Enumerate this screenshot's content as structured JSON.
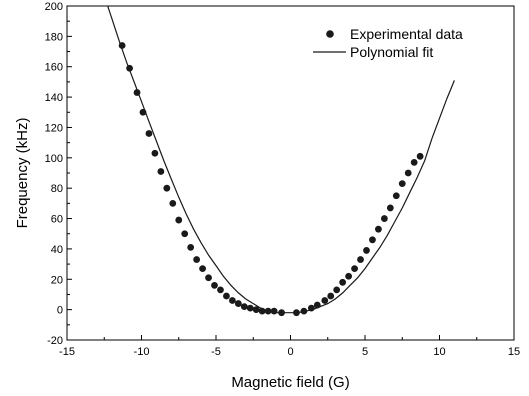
{
  "chart_data": {
    "type": "scatter",
    "title": "",
    "xlabel": "Magnetic field (G)",
    "ylabel": "Frequency (kHz)",
    "xlim": [
      -15,
      15
    ],
    "ylim": [
      -20,
      200
    ],
    "x_ticks": [
      -15,
      -10,
      -5,
      0,
      5,
      10,
      15
    ],
    "y_ticks": [
      -20,
      0,
      20,
      40,
      60,
      80,
      100,
      120,
      140,
      160,
      180,
      200
    ],
    "grid": false,
    "legend_position": "top-right",
    "colors": {
      "markers": "#1a1a1a",
      "line": "#1a1a1a"
    },
    "series": [
      {
        "name": "Experimental data",
        "kind": "markers",
        "x": [
          -11.3,
          -10.8,
          -10.3,
          -9.9,
          -9.5,
          -9.1,
          -8.7,
          -8.3,
          -7.9,
          -7.5,
          -7.1,
          -6.7,
          -6.3,
          -5.9,
          -5.5,
          -5.1,
          -4.7,
          -4.3,
          -3.9,
          -3.5,
          -3.1,
          -2.7,
          -2.3,
          -1.9,
          -1.5,
          -1.1,
          -0.6,
          0.4,
          0.9,
          1.4,
          1.8,
          2.3,
          2.7,
          3.1,
          3.5,
          3.9,
          4.3,
          4.7,
          5.1,
          5.5,
          5.9,
          6.3,
          6.7,
          7.1,
          7.5,
          7.9,
          8.3,
          8.7
        ],
        "y": [
          174,
          159,
          143,
          130,
          116,
          103,
          91,
          80,
          70,
          59,
          50,
          41,
          33,
          27,
          21,
          16,
          13,
          9,
          6,
          4,
          2,
          1,
          0,
          -1,
          -1,
          -1,
          -2,
          -2,
          -1,
          1,
          3,
          6,
          9,
          13,
          18,
          22,
          27,
          33,
          39,
          46,
          53,
          60,
          67,
          75,
          83,
          90,
          97,
          101
        ]
      },
      {
        "name": "Polynomial fit",
        "kind": "line",
        "x": [
          -12.3,
          -12,
          -11.5,
          -11,
          -10.5,
          -10,
          -9.5,
          -9,
          -8.5,
          -8,
          -7.5,
          -7,
          -6.5,
          -6,
          -5.5,
          -5,
          -4.5,
          -4,
          -3.5,
          -3,
          -2.5,
          -2,
          -1.5,
          -1,
          -0.5,
          0,
          0.5,
          1,
          1.5,
          2,
          2.5,
          3,
          3.5,
          4,
          4.5,
          5,
          5.5,
          6,
          6.5,
          7,
          7.5,
          8,
          8.5,
          9,
          9.5,
          10,
          10.5,
          11
        ],
        "y": [
          201,
          192,
          177,
          163,
          150,
          137,
          124,
          111,
          98,
          86,
          74,
          63,
          53,
          44,
          36,
          29,
          22,
          16,
          11,
          7,
          4,
          1,
          -1,
          -2,
          -2,
          -2,
          -2,
          -1,
          0,
          2,
          4,
          7,
          11,
          16,
          21,
          27,
          34,
          41,
          49,
          58,
          67,
          77,
          87,
          98,
          113,
          126,
          139,
          151
        ]
      }
    ]
  }
}
